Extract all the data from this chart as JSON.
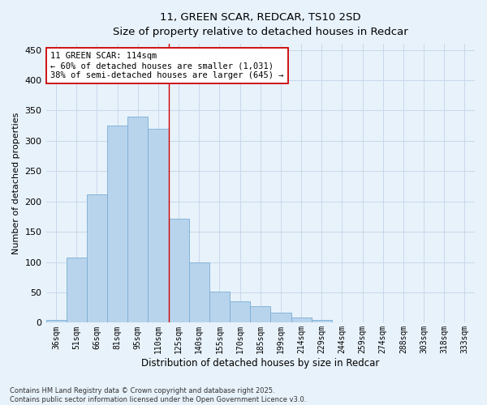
{
  "title_line1": "11, GREEN SCAR, REDCAR, TS10 2SD",
  "title_line2": "Size of property relative to detached houses in Redcar",
  "xlabel": "Distribution of detached houses by size in Redcar",
  "ylabel": "Number of detached properties",
  "categories": [
    "36sqm",
    "51sqm",
    "66sqm",
    "81sqm",
    "95sqm",
    "110sqm",
    "125sqm",
    "140sqm",
    "155sqm",
    "170sqm",
    "185sqm",
    "199sqm",
    "214sqm",
    "229sqm",
    "244sqm",
    "259sqm",
    "274sqm",
    "288sqm",
    "303sqm",
    "318sqm",
    "333sqm"
  ],
  "values": [
    5,
    107,
    212,
    325,
    340,
    320,
    172,
    99,
    51,
    35,
    27,
    16,
    9,
    4,
    0,
    0,
    0,
    0,
    0,
    0,
    0
  ],
  "bar_color": "#b8d4ec",
  "bar_edge_color": "#7aadd4",
  "vline_x_index": 5,
  "vline_color": "#cc0000",
  "annotation_text": "11 GREEN SCAR: 114sqm\n← 60% of detached houses are smaller (1,031)\n38% of semi-detached houses are larger (645) →",
  "annotation_box_facecolor": "#ffffff",
  "annotation_box_edgecolor": "#cc0000",
  "ylim": [
    0,
    460
  ],
  "yticks": [
    0,
    50,
    100,
    150,
    200,
    250,
    300,
    350,
    400,
    450
  ],
  "grid_color": "#c8d8ea",
  "background_color": "#e8f2fb",
  "footnote": "Contains HM Land Registry data © Crown copyright and database right 2025.\nContains public sector information licensed under the Open Government Licence v3.0."
}
